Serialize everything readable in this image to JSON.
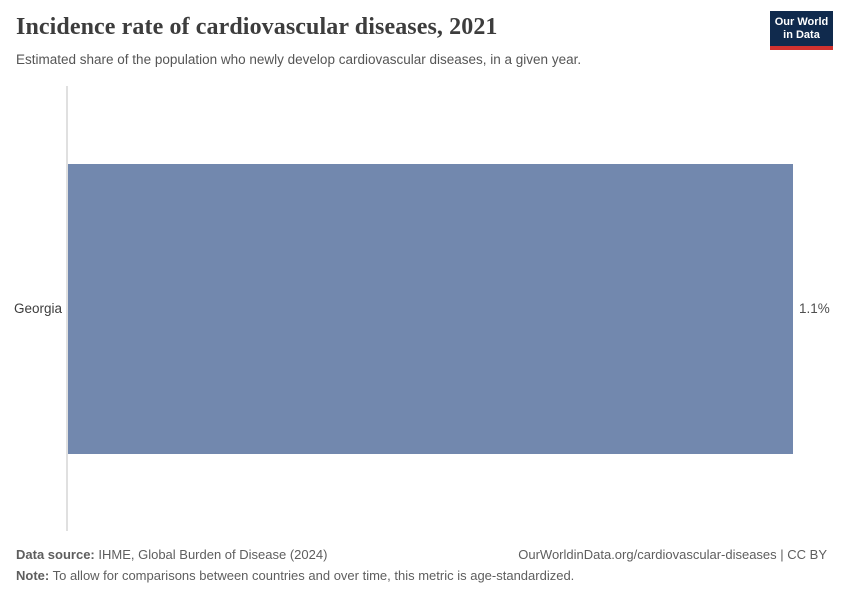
{
  "header": {
    "title": "Incidence rate of cardiovascular diseases, 2021",
    "subtitle": "Estimated share of the population who newly develop cardiovascular diseases, in a given year.",
    "logo": {
      "line1": "Our World",
      "line2": "in Data"
    }
  },
  "chart_data": {
    "type": "bar",
    "orientation": "horizontal",
    "title": "Incidence rate of cardiovascular diseases, 2021",
    "subtitle": "Estimated share of the population who newly develop cardiovascular diseases, in a given year.",
    "categories": [
      "Georgia"
    ],
    "values": [
      1.1
    ],
    "value_labels": [
      "1.1%"
    ],
    "unit": "%",
    "xlabel": "",
    "ylabel": "",
    "xlim": [
      0,
      1.1
    ],
    "grid": false,
    "legend": "none"
  },
  "footer": {
    "data_source_label": "Data source:",
    "data_source_value": " IHME, Global Burden of Disease (2024)",
    "attribution": "OurWorldinData.org/cardiovascular-diseases | CC BY",
    "note_label": "Note:",
    "note_value": " To allow for comparisons between countries and over time, this metric is age-standardized."
  },
  "colors": {
    "bar": "#7288ae",
    "logo_bg": "#102a4d",
    "logo_red": "#d1322f",
    "axis_line": "#e0e0e0"
  }
}
